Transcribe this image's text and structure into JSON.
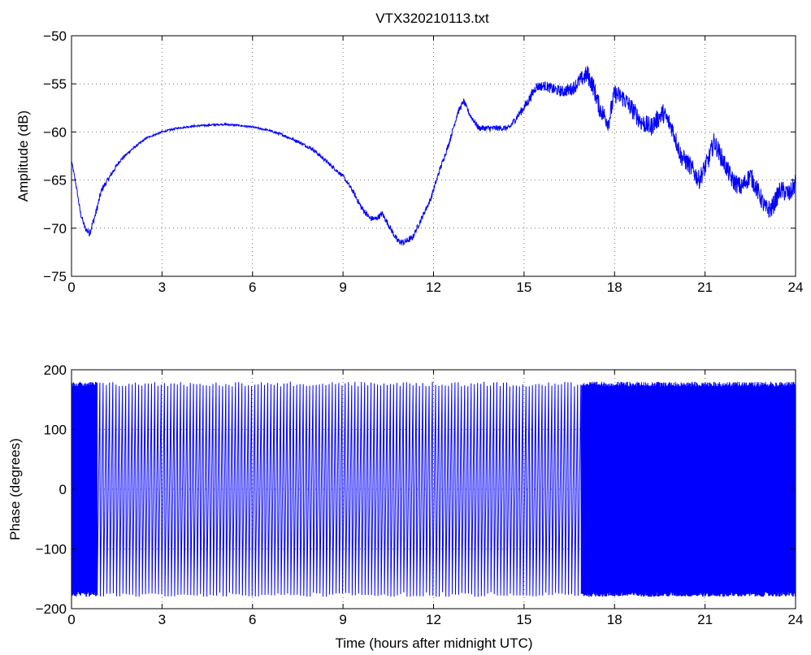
{
  "figure_title": "VTX320210113.txt",
  "line_color": "#0000ff",
  "chart_data": [
    {
      "type": "line",
      "title": "VTX320210113.txt",
      "xlabel": "",
      "ylabel": "Amplitude (dB)",
      "xlim": [
        0,
        24
      ],
      "ylim": [
        -75,
        -50
      ],
      "xticks": [
        0,
        3,
        6,
        9,
        12,
        15,
        18,
        21,
        24
      ],
      "yticks": [
        -75,
        -70,
        -65,
        -60,
        -55,
        -50
      ],
      "xtick_labels": [
        "0",
        "3",
        "6",
        "9",
        "12",
        "15",
        "18",
        "21",
        "24"
      ],
      "ytick_labels": [
        "−75",
        "−70",
        "−65",
        "−60",
        "−55",
        "−50"
      ],
      "grid": true,
      "series": [
        {
          "x": [
            0,
            0.15,
            0.3,
            0.45,
            0.6,
            0.8,
            1.0,
            1.3,
            1.6,
            2.0,
            2.5,
            3.0,
            3.5,
            4.0,
            4.5,
            5.0,
            5.5,
            6.0,
            6.5,
            7.0,
            7.5,
            8.0,
            8.5,
            9.0,
            9.3,
            9.6,
            9.9,
            10.1,
            10.3,
            10.5,
            10.8,
            11.0,
            11.3,
            11.6,
            11.9,
            12.2,
            12.5,
            12.8,
            13.0,
            13.2,
            13.5,
            14.0,
            14.5,
            14.8,
            15.1,
            15.4,
            15.7,
            16.0,
            16.3,
            16.6,
            16.9,
            17.1,
            17.3,
            17.5,
            17.8,
            18.0,
            18.3,
            18.6,
            18.9,
            19.2,
            19.6,
            19.9,
            20.2,
            20.5,
            20.8,
            21.1,
            21.3,
            21.6,
            21.9,
            22.2,
            22.5,
            22.8,
            23.0,
            23.2,
            23.5,
            23.8,
            24.0
          ],
          "y": [
            -63.0,
            -65.5,
            -68.5,
            -70.0,
            -70.5,
            -68.5,
            -66.0,
            -64.5,
            -63.0,
            -61.8,
            -60.6,
            -60.0,
            -59.6,
            -59.4,
            -59.3,
            -59.2,
            -59.3,
            -59.5,
            -59.8,
            -60.3,
            -61.0,
            -61.8,
            -63.2,
            -64.6,
            -66.0,
            -67.8,
            -69.0,
            -69.0,
            -68.5,
            -69.6,
            -71.3,
            -71.5,
            -71.0,
            -69.0,
            -67.0,
            -64.0,
            -61.3,
            -58.0,
            -56.8,
            -58.2,
            -59.6,
            -59.6,
            -59.6,
            -58.3,
            -57.0,
            -55.3,
            -55.2,
            -55.6,
            -55.8,
            -55.5,
            -54.5,
            -54.0,
            -55.3,
            -57.5,
            -59.0,
            -56.0,
            -56.5,
            -57.7,
            -59.0,
            -59.5,
            -58.0,
            -59.5,
            -62.5,
            -63.5,
            -65.0,
            -63.0,
            -61.0,
            -63.0,
            -65.0,
            -65.8,
            -64.5,
            -66.5,
            -68.0,
            -68.0,
            -66.0,
            -66.5,
            -65.3
          ],
          "noise": [
            0.15,
            0.2,
            0.3,
            0.3,
            0.4,
            0.4,
            0.35,
            0.25,
            0.2,
            0.15,
            0.1,
            0.1,
            0.1,
            0.1,
            0.1,
            0.1,
            0.1,
            0.1,
            0.1,
            0.15,
            0.15,
            0.2,
            0.2,
            0.2,
            0.25,
            0.3,
            0.3,
            0.3,
            0.3,
            0.3,
            0.35,
            0.35,
            0.3,
            0.3,
            0.3,
            0.3,
            0.3,
            0.3,
            0.3,
            0.3,
            0.3,
            0.3,
            0.3,
            0.4,
            0.5,
            0.5,
            0.5,
            0.6,
            0.6,
            0.7,
            0.8,
            1.0,
            1.0,
            1.0,
            1.0,
            1.0,
            1.0,
            1.0,
            1.0,
            1.0,
            1.0,
            1.0,
            1.0,
            1.0,
            1.0,
            1.0,
            1.0,
            1.0,
            1.0,
            1.0,
            1.0,
            1.0,
            1.0,
            1.0,
            1.0,
            1.0,
            1.0
          ]
        }
      ]
    },
    {
      "type": "line",
      "title": "",
      "xlabel": "Time (hours after midnight UTC)",
      "ylabel": "Phase (degrees)",
      "xlim": [
        0,
        24
      ],
      "ylim": [
        -200,
        200
      ],
      "xticks": [
        0,
        3,
        6,
        9,
        12,
        15,
        18,
        21,
        24
      ],
      "yticks": [
        -200,
        -100,
        0,
        100,
        200
      ],
      "xtick_labels": [
        "0",
        "3",
        "6",
        "9",
        "12",
        "15",
        "18",
        "21",
        "24"
      ],
      "ytick_labels": [
        "−200",
        "−100",
        "0",
        "100",
        "200"
      ],
      "grid": true,
      "series": [
        {
          "phase_wrap_range": [
            -180,
            180
          ],
          "segments": [
            {
              "x_start": 0.0,
              "x_end": 0.85,
              "wraps": 48
            },
            {
              "x_start": 0.85,
              "x_end": 16.9,
              "wraps": 150
            },
            {
              "x_start": 16.9,
              "x_end": 24.0,
              "wraps": 380
            }
          ]
        }
      ]
    }
  ]
}
